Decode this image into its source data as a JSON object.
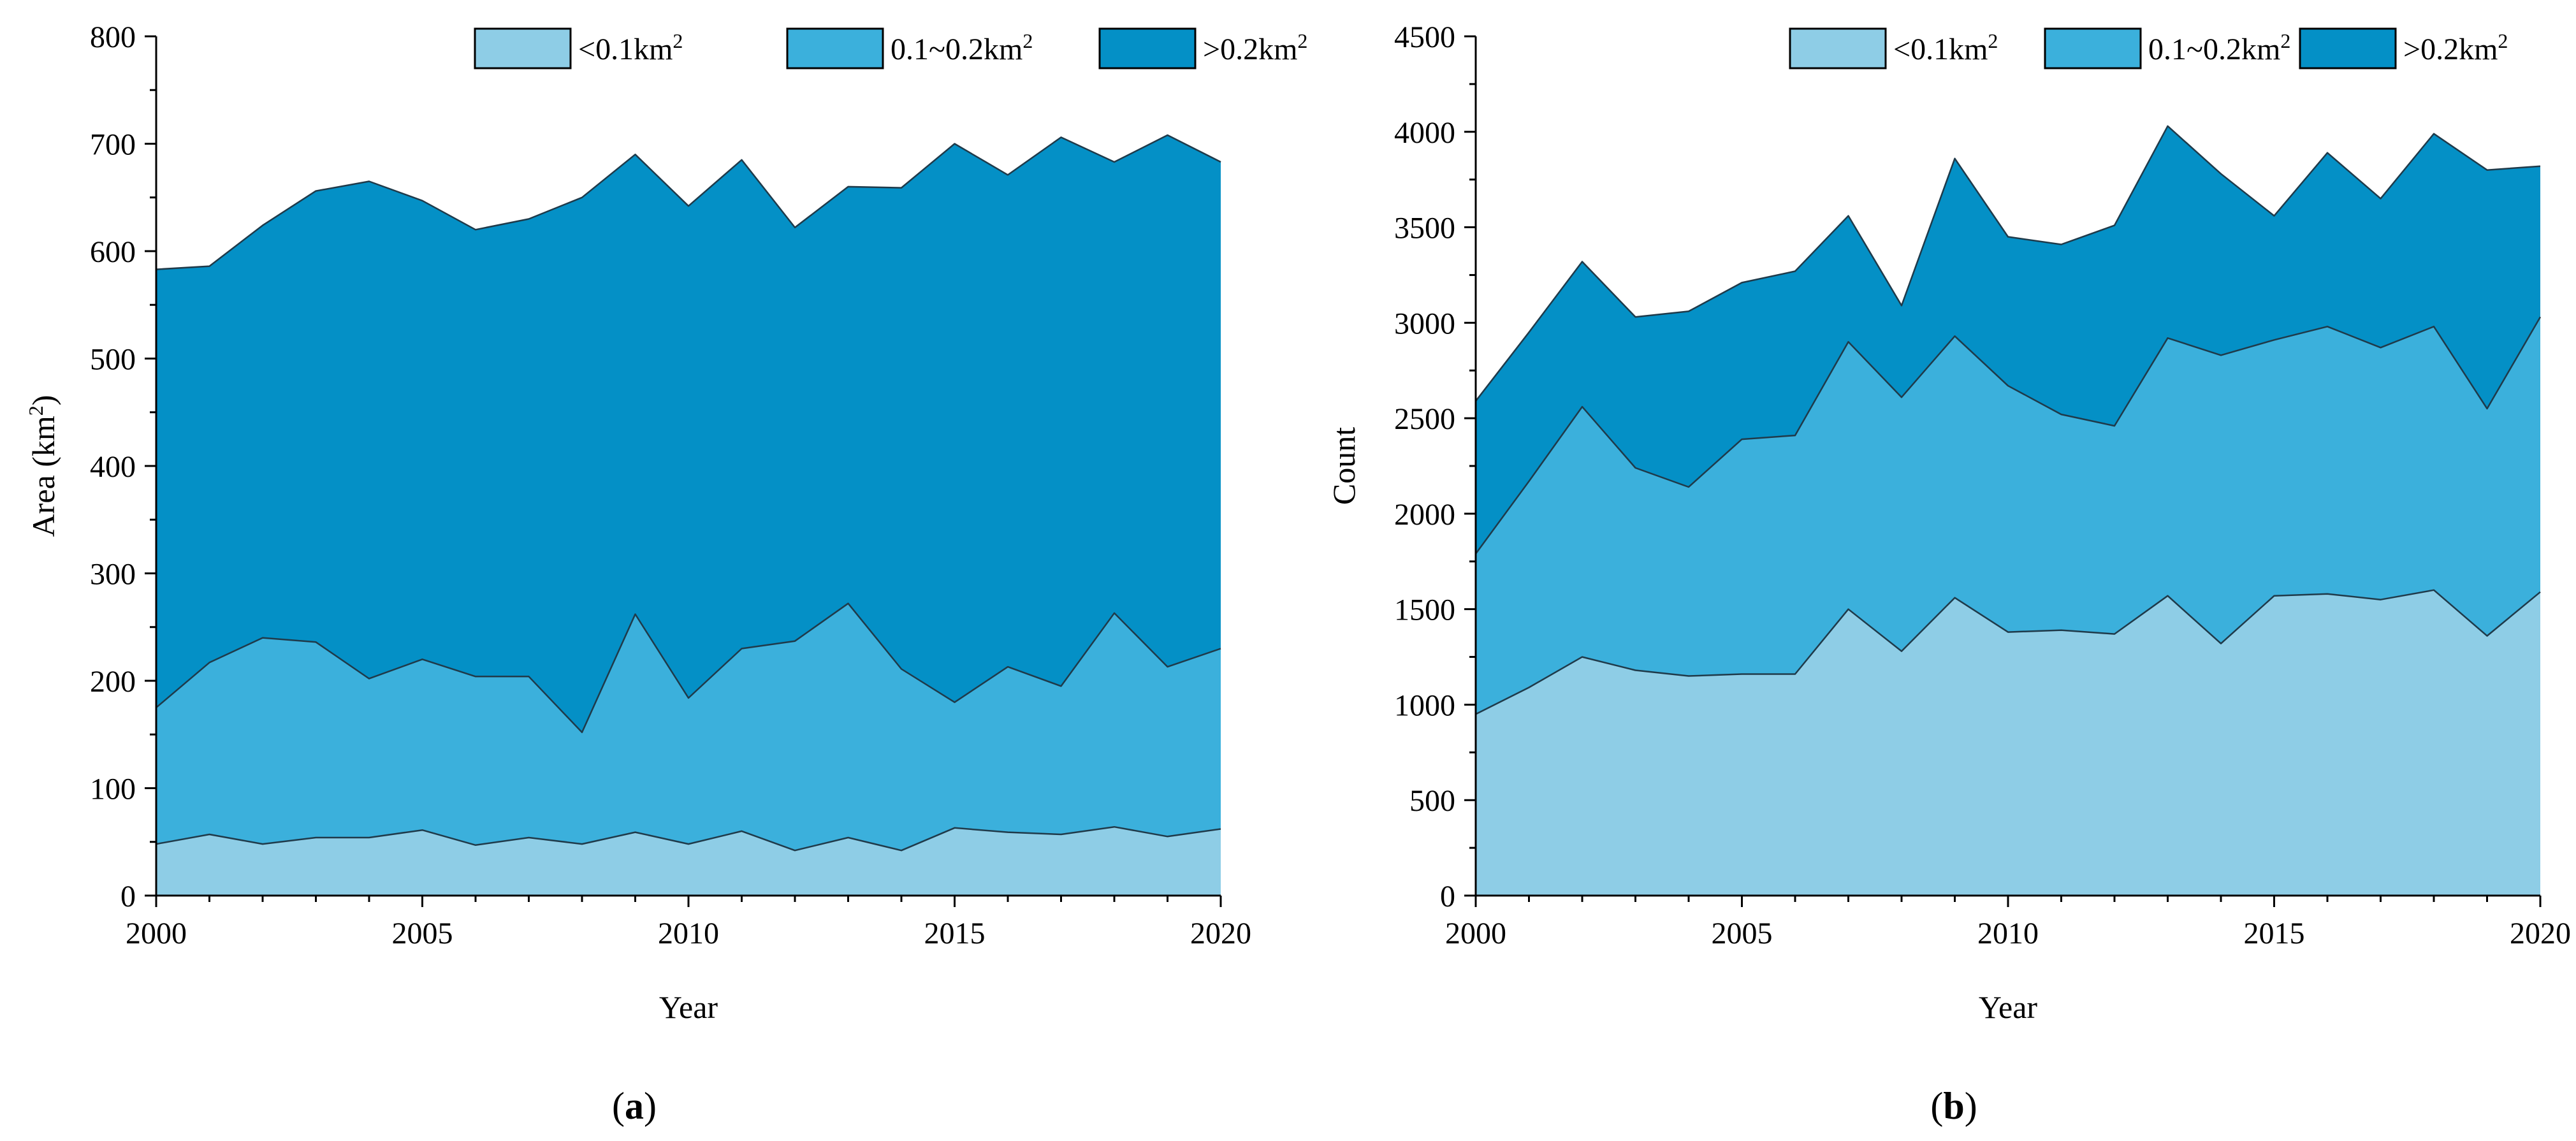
{
  "chart_data": [
    {
      "type": "area",
      "stacked": true,
      "panel_label": "a",
      "title": "",
      "xlabel": "Year",
      "ylabel": {
        "prefix": "Area (km",
        "sup": "2",
        "suffix": ")"
      },
      "xlim": [
        2000,
        2020
      ],
      "ylim": [
        0,
        800
      ],
      "xticks": [
        "2000",
        "2005",
        "2010",
        "2015",
        "2020"
      ],
      "yticks": [
        "0",
        "100",
        "200",
        "300",
        "400",
        "500",
        "600",
        "700",
        "800"
      ],
      "legend_position": "top-right",
      "x": [
        2000,
        2001,
        2002,
        2003,
        2004,
        2005,
        2006,
        2007,
        2008,
        2009,
        2010,
        2011,
        2012,
        2013,
        2014,
        2015,
        2016,
        2017,
        2018,
        2019,
        2020
      ],
      "series": [
        {
          "name": "<0.1km2",
          "legend_main": "<0.1km",
          "legend_sup": "2",
          "color": "#8ecde6",
          "cumulative": [
            48,
            57,
            48,
            54,
            54,
            61,
            47,
            54,
            48,
            59,
            48,
            60,
            42,
            54,
            42,
            63,
            59,
            57,
            64,
            55,
            62
          ]
        },
        {
          "name": "0.1~0.2km2",
          "legend_main": "0.1~0.2km",
          "legend_sup": "2",
          "color": "#3bb0dc",
          "cumulative": [
            175,
            217,
            240,
            236,
            202,
            220,
            204,
            204,
            152,
            262,
            184,
            230,
            237,
            272,
            211,
            180,
            213,
            195,
            263,
            213,
            230
          ]
        },
        {
          "name": ">0.2km2",
          "legend_main": ">0.2km",
          "legend_sup": "2",
          "color": "#0490c6",
          "cumulative": [
            583,
            586,
            624,
            656,
            665,
            647,
            620,
            630,
            650,
            690,
            642,
            685,
            622,
            660,
            659,
            700,
            671,
            706,
            683,
            708,
            683
          ]
        }
      ]
    },
    {
      "type": "area",
      "stacked": true,
      "panel_label": "b",
      "title": "",
      "xlabel": "Year",
      "ylabel": {
        "prefix": "Count",
        "sup": "",
        "suffix": ""
      },
      "xlim": [
        2000,
        2020
      ],
      "ylim": [
        0,
        4500
      ],
      "xticks": [
        "2000",
        "2005",
        "2010",
        "2015",
        "2020"
      ],
      "yticks": [
        "0",
        "500",
        "1000",
        "1500",
        "2000",
        "2500",
        "3000",
        "3500",
        "4000",
        "4500"
      ],
      "legend_position": "top-right",
      "x": [
        2000,
        2001,
        2002,
        2003,
        2004,
        2005,
        2006,
        2007,
        2008,
        2009,
        2010,
        2011,
        2012,
        2013,
        2014,
        2015,
        2016,
        2017,
        2018,
        2019,
        2020
      ],
      "series": [
        {
          "name": "<0.1km2",
          "legend_main": "<0.1km",
          "legend_sup": "2",
          "color": "#8ecde6",
          "cumulative": [
            950,
            1090,
            1250,
            1180,
            1150,
            1160,
            1160,
            1500,
            1280,
            1560,
            1380,
            1390,
            1370,
            1570,
            1320,
            1570,
            1580,
            1550,
            1600,
            1360,
            1590
          ]
        },
        {
          "name": "0.1~0.2km2",
          "legend_main": "0.1~0.2km",
          "legend_sup": "2",
          "color": "#3bb0dc",
          "cumulative": [
            1790,
            2170,
            2560,
            2240,
            2140,
            2390,
            2410,
            2900,
            2610,
            2930,
            2670,
            2520,
            2460,
            2920,
            2830,
            2910,
            2980,
            2870,
            2980,
            2550,
            3030
          ]
        },
        {
          "name": ">0.2km2",
          "legend_main": ">0.2km",
          "legend_sup": "2",
          "color": "#0490c6",
          "cumulative": [
            2590,
            2950,
            3320,
            3030,
            3060,
            3210,
            3270,
            3560,
            3090,
            3860,
            3450,
            3410,
            3510,
            4030,
            3780,
            3560,
            3890,
            3650,
            3990,
            3800,
            3820
          ]
        }
      ]
    }
  ]
}
